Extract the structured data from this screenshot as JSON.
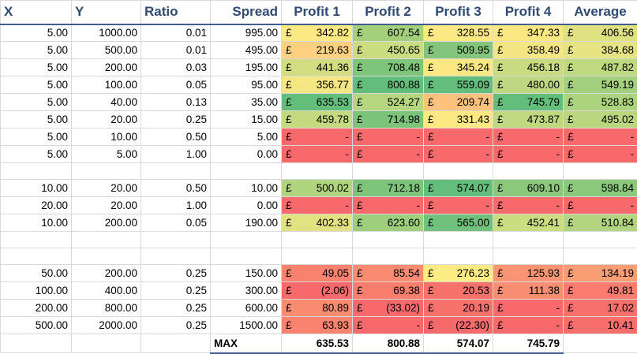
{
  "headers": {
    "x": "X",
    "y": "Y",
    "ratio": "Ratio",
    "spread": "Spread",
    "p1": "Profit 1",
    "p2": "Profit 2",
    "p3": "Profit 3",
    "p4": "Profit 4",
    "avg": "Average"
  },
  "currency": "£",
  "rows": [
    {
      "x": "5.00",
      "y": "1000.00",
      "ratio": "0.01",
      "spread": "995.00",
      "p": [
        "342.82",
        "607.54",
        "328.55",
        "347.33",
        "406.56"
      ],
      "c": [
        "#fde983",
        "#a4d07c",
        "#fde983",
        "#fbe882",
        "#e0e282"
      ]
    },
    {
      "x": "5.00",
      "y": "500.00",
      "ratio": "0.01",
      "spread": "495.00",
      "p": [
        "219.63",
        "450.65",
        "509.95",
        "358.49",
        "384.68"
      ],
      "c": [
        "#fdd17f",
        "#cbdc81",
        "#83c57b",
        "#f5e684",
        "#e7e483"
      ]
    },
    {
      "x": "5.00",
      "y": "200.00",
      "ratio": "0.03",
      "spread": "195.00",
      "p": [
        "441.36",
        "708.48",
        "345.24",
        "456.18",
        "487.82"
      ],
      "c": [
        "#d2dd81",
        "#7fc47b",
        "#fbe882",
        "#c9db80",
        "#bfd980"
      ]
    },
    {
      "x": "5.00",
      "y": "100.00",
      "ratio": "0.05",
      "spread": "95.00",
      "p": [
        "356.77",
        "800.88",
        "559.09",
        "480.00",
        "549.19"
      ],
      "c": [
        "#f5e684",
        "#63be7b",
        "#63be7b",
        "#bdd880",
        "#a2d07d"
      ]
    },
    {
      "x": "5.00",
      "y": "40.00",
      "ratio": "0.13",
      "spread": "35.00",
      "p": [
        "635.53",
        "524.27",
        "209.74",
        "745.79",
        "528.83"
      ],
      "c": [
        "#63be7b",
        "#b6d67f",
        "#fcc17c",
        "#63be7b",
        "#acd37e"
      ]
    },
    {
      "x": "5.00",
      "y": "20.00",
      "ratio": "0.25",
      "spread": "15.00",
      "p": [
        "459.78",
        "714.98",
        "331.43",
        "473.87",
        "495.02"
      ],
      "c": [
        "#c5da80",
        "#7dc47b",
        "#fde983",
        "#c0d980",
        "#bad77f"
      ]
    },
    {
      "x": "5.00",
      "y": "10.00",
      "ratio": "0.50",
      "spread": "5.00",
      "p": [
        "-",
        "-",
        "-",
        "-",
        "-"
      ],
      "c": [
        "#f8696b",
        "#f8696b",
        "#f8696b",
        "#f8696b",
        "#f8696b"
      ]
    },
    {
      "x": "5.00",
      "y": "5.00",
      "ratio": "1.00",
      "spread": "0.00",
      "p": [
        "-",
        "-",
        "-",
        "-",
        "-"
      ],
      "c": [
        "#f8696b",
        "#f8696b",
        "#f8696b",
        "#f8696b",
        "#f8696b"
      ]
    },
    {
      "blank": true
    },
    {
      "x": "10.00",
      "y": "20.00",
      "ratio": "0.50",
      "spread": "10.00",
      "p": [
        "500.02",
        "712.18",
        "574.07",
        "609.10",
        "598.84"
      ],
      "c": [
        "#b1d47e",
        "#7ec47b",
        "#63be7b",
        "#8bc87c",
        "#8ac87c"
      ]
    },
    {
      "x": "20.00",
      "y": "20.00",
      "ratio": "1.00",
      "spread": "0.00",
      "p": [
        "-",
        "-",
        "-",
        "-",
        "-"
      ],
      "c": [
        "#f8696b",
        "#f8696b",
        "#f8696b",
        "#f8696b",
        "#f8696b"
      ]
    },
    {
      "x": "10.00",
      "y": "200.00",
      "ratio": "0.05",
      "spread": "190.00",
      "p": [
        "402.33",
        "623.60",
        "565.00",
        "452.41",
        "510.84"
      ],
      "c": [
        "#e2e282",
        "#9dcf7d",
        "#70c17b",
        "#cbdc81",
        "#b3d57f"
      ]
    },
    {
      "blank": true
    },
    {
      "blank": true
    },
    {
      "x": "50.00",
      "y": "200.00",
      "ratio": "0.25",
      "spread": "150.00",
      "p": [
        "49.05",
        "85.54",
        "276.23",
        "125.93",
        "134.19"
      ],
      "c": [
        "#f9826f",
        "#f98b71",
        "#fdeb84",
        "#fa9473",
        "#f99d75"
      ]
    },
    {
      "x": "100.00",
      "y": "400.00",
      "ratio": "0.25",
      "spread": "300.00",
      "p": [
        "(2.06)",
        "69.38",
        "20.53",
        "111.38",
        "49.81"
      ],
      "c": [
        "#f8696b",
        "#f97e6e",
        "#f8726c",
        "#fa8e72",
        "#f97c6e"
      ]
    },
    {
      "x": "200.00",
      "y": "800.00",
      "ratio": "0.25",
      "spread": "600.00",
      "p": [
        "80.89",
        "(33.02)",
        "20.19",
        "-",
        "17.02"
      ],
      "c": [
        "#f98b71",
        "#f8696b",
        "#f8726c",
        "#f8696b",
        "#f8706c"
      ]
    },
    {
      "x": "500.00",
      "y": "2000.00",
      "ratio": "0.25",
      "spread": "1500.00",
      "p": [
        "63.93",
        "-",
        "(22.30)",
        "-",
        "10.41"
      ],
      "c": [
        "#f9836f",
        "#f8696b",
        "#f8696b",
        "#f8696b",
        "#f86e6c"
      ]
    }
  ],
  "max_row": {
    "label": "MAX",
    "values": [
      "635.53",
      "800.88",
      "574.07",
      "745.79"
    ]
  }
}
